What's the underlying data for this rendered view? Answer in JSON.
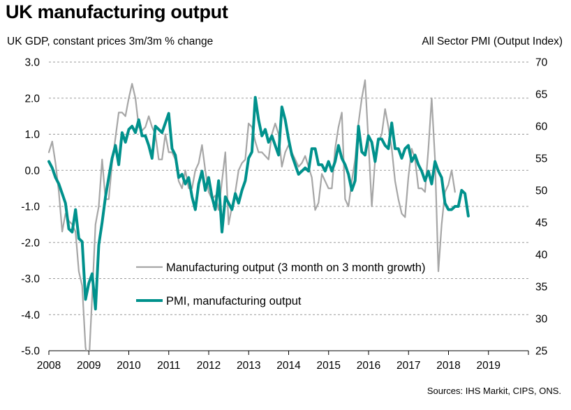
{
  "title": "UK manufacturing output",
  "source": "Sources: IHS Markit,  CIPS, ONS.",
  "colors": {
    "output": "#a6a6a6",
    "pmi": "#00918c",
    "grid": "#9a9a9a",
    "axis": "#000000"
  },
  "chart_data": {
    "type": "line",
    "ylabel_left": "UK GDP, constant prices 3m/3m % change",
    "ylabel_right": "All Sector PMI (Output Index)",
    "ylim_left": [
      -5.0,
      3.0
    ],
    "ylim_right": [
      25,
      70
    ],
    "yticks_left": [
      "3.0",
      "2.0",
      "1.0",
      "0.0",
      "-1.0",
      "-2.0",
      "-3.0",
      "-4.0",
      "-5.0"
    ],
    "yticks_right": [
      "70",
      "65",
      "60",
      "55",
      "50",
      "45",
      "40",
      "35",
      "30",
      "25"
    ],
    "xticks": [
      "2008",
      "2009",
      "2010",
      "2011",
      "2012",
      "2013",
      "2014",
      "2015",
      "2016",
      "2017",
      "2018",
      "2019"
    ],
    "grid": true,
    "legend_position": "bottom-center",
    "series": [
      {
        "name": "Manufacturing output (3 month on 3 month growth)",
        "axis": "left",
        "x_start": 2008.0,
        "x_step": 0.0833,
        "values": [
          0.5,
          0.8,
          0.2,
          -0.6,
          -1.7,
          -1.2,
          -1.4,
          -1.5,
          -1.7,
          -2.8,
          -3.2,
          -4.9,
          -5.4,
          -3.5,
          -1.5,
          -1.0,
          0.3,
          -0.8,
          -0.8,
          0.2,
          0.9,
          1.6,
          1.6,
          1.5,
          2.0,
          2.4,
          2.0,
          1.2,
          1.1,
          1.2,
          1.5,
          1.2,
          1.0,
          0.3,
          0.3,
          1.0,
          0.5,
          0.5,
          0.3,
          -0.3,
          -0.5,
          0.0,
          -0.5,
          -0.5,
          0.0,
          0.2,
          0.7,
          0.0,
          -0.6,
          -0.8,
          -0.7,
          -1.1,
          -0.3,
          0.5,
          -1.5,
          -1.0,
          -0.6,
          0.0,
          0.2,
          0.3,
          1.3,
          1.2,
          0.8,
          0.5,
          0.5,
          0.4,
          0.3,
          1.0,
          1.3,
          1.0,
          0.1,
          0.5,
          0.7,
          0.5,
          0.3,
          0.1,
          0.2,
          0.4,
          0.1,
          -0.2,
          -1.1,
          -0.9,
          -0.1,
          -0.3,
          -0.5,
          -0.5,
          0.6,
          1.2,
          1.6,
          -0.8,
          -1.0,
          -0.3,
          0.3,
          1.3,
          2.0,
          2.5,
          0.8,
          -1.0,
          0.3,
          0.8,
          1.0,
          1.7,
          1.2,
          0.6,
          -0.3,
          -0.8,
          -1.2,
          -1.3,
          -0.2,
          0.6,
          0.3,
          -0.5,
          -0.5,
          -0.6,
          0.6,
          2.0,
          0.3,
          -2.8,
          -1.5,
          -0.6,
          -0.4,
          0.0,
          -0.6
        ]
      },
      {
        "name": "PMI, manufacturing output",
        "axis": "right",
        "x_start": 2008.0,
        "x_step": 0.0833,
        "values": [
          54.5,
          53.5,
          52.0,
          51.0,
          49.5,
          48.0,
          44.0,
          43.5,
          47.0,
          42.5,
          42.0,
          33.0,
          35.5,
          37.0,
          31.5,
          41.5,
          45.0,
          49.0,
          52.0,
          55.0,
          57.0,
          54.0,
          59.0,
          57.5,
          59.5,
          60.0,
          59.0,
          61.0,
          58.5,
          58.5,
          57.0,
          55.0,
          60.0,
          59.5,
          59.0,
          60.5,
          62.0,
          56.5,
          55.5,
          52.0,
          52.5,
          51.0,
          52.0,
          49.0,
          47.0,
          51.0,
          53.0,
          50.0,
          52.0,
          49.0,
          47.0,
          51.5,
          43.5,
          49.0,
          48.0,
          47.0,
          49.5,
          48.0,
          50.0,
          51.5,
          55.0,
          56.0,
          64.5,
          61.0,
          58.5,
          59.5,
          57.5,
          58.5,
          57.0,
          55.5,
          63.0,
          61.0,
          58.0,
          55.5,
          54.0,
          52.5,
          53.0,
          53.5,
          53.0,
          56.5,
          56.5,
          54.0,
          54.0,
          53.0,
          54.5,
          53.0,
          54.5,
          57.0,
          55.0,
          54.0,
          52.5,
          50.0,
          51.5,
          60.0,
          56.0,
          55.5,
          58.5,
          57.5,
          54.5,
          58.0,
          58.0,
          57.0,
          56.5,
          60.5,
          56.5,
          56.5,
          55.0,
          56.5,
          57.0,
          54.5,
          55.5,
          54.0,
          53.0,
          51.5,
          53.0,
          51.0,
          54.5,
          53.0,
          52.0,
          48.0,
          47.0,
          47.0,
          47.5,
          47.5,
          50.0,
          49.5,
          46.0
        ]
      }
    ]
  }
}
